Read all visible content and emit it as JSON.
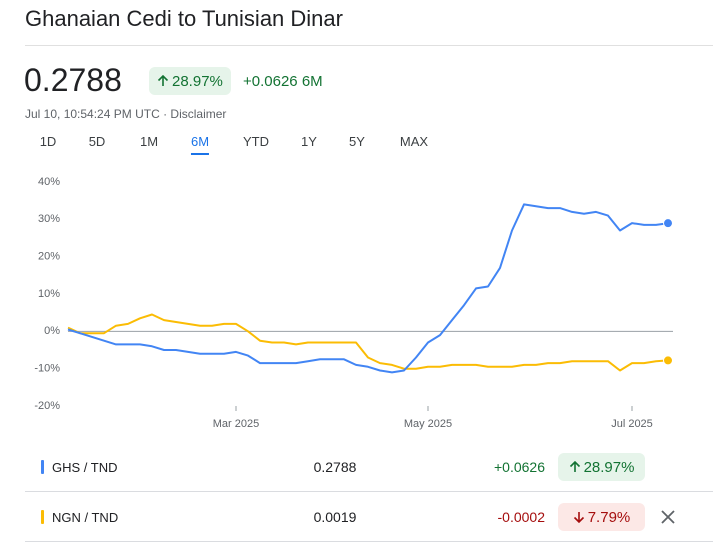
{
  "header": {
    "title": "Ghanaian Cedi to Tunisian Dinar",
    "price": "0.2788",
    "change_percent": "28.97%",
    "change": "+0.0626",
    "period": "6M",
    "timestamp": "Jul 10, 10:54:24 PM UTC",
    "disclaimer": "Disclaimer"
  },
  "tabs": [
    "1D",
    "5D",
    "1M",
    "6M",
    "YTD",
    "1Y",
    "5Y",
    "MAX"
  ],
  "active_tab": 3,
  "chart_data": {
    "type": "line",
    "categories": [
      null,
      null,
      null,
      null,
      null,
      null,
      null,
      null,
      null,
      null,
      null,
      null,
      null,
      null,
      "Mar 2025",
      null,
      null,
      null,
      null,
      null,
      null,
      null,
      null,
      null,
      null,
      null,
      null,
      null,
      null,
      null,
      "May 2025",
      null,
      null,
      null,
      null,
      null,
      null,
      null,
      null,
      null,
      null,
      null,
      null,
      null,
      null,
      null,
      null,
      "Jul 2025",
      null,
      null,
      null
    ],
    "series": [
      {
        "name": "GHS / TND",
        "color": "#4285f4",
        "values": [
          0.5,
          -0.5,
          -1.5,
          -2.5,
          -3.5,
          -3.5,
          -3.5,
          -4,
          -5,
          -5,
          -5.5,
          -6,
          -6,
          -6,
          -5.5,
          -6.5,
          -8.5,
          -8.5,
          -8.5,
          -8.5,
          -8,
          -7.5,
          -7.5,
          -7.5,
          -9,
          -9.5,
          -10.5,
          -11,
          -10.5,
          -7,
          -3,
          -1,
          3,
          7,
          11.5,
          12,
          17,
          27,
          34,
          33.5,
          33,
          33,
          32,
          31.5,
          32,
          31,
          27,
          29,
          28.5,
          28.5,
          28.97
        ]
      },
      {
        "name": "NGN / TND",
        "color": "#fbbc04",
        "values": [
          1,
          -0.5,
          -0.5,
          -0.5,
          1.5,
          2,
          3.5,
          4.5,
          3,
          2.5,
          2,
          1.5,
          1.5,
          2,
          2,
          0,
          -2.5,
          -3,
          -3,
          -3.5,
          -3,
          -3,
          -3,
          -3,
          -3,
          -7,
          -8.5,
          -9,
          -10,
          -10,
          -9.5,
          -9.5,
          -9,
          -9,
          -9,
          -9.5,
          -9.5,
          -9.5,
          -9,
          -9,
          -8.5,
          -8.5,
          -8,
          -8,
          -8,
          -8,
          -10.5,
          -8.5,
          -8.5,
          -8,
          -7.79
        ]
      }
    ],
    "ylim": [
      -20,
      40
    ],
    "yticks": [
      {
        "value": -20,
        "label": "-20%"
      },
      {
        "value": -10,
        "label": "-10%"
      },
      {
        "value": 0,
        "label": "0%"
      },
      {
        "value": 10,
        "label": "10%"
      },
      {
        "value": 20,
        "label": "20%"
      },
      {
        "value": 30,
        "label": "30%"
      },
      {
        "value": 40,
        "label": "40%"
      }
    ]
  },
  "comparison": {
    "rows": [
      {
        "price": "0.2788",
        "change": "+0.0626",
        "change_percent": "28.97%"
      },
      {
        "price": "0.0019",
        "change": "-0.0002",
        "change_percent": "7.79%"
      }
    ]
  }
}
